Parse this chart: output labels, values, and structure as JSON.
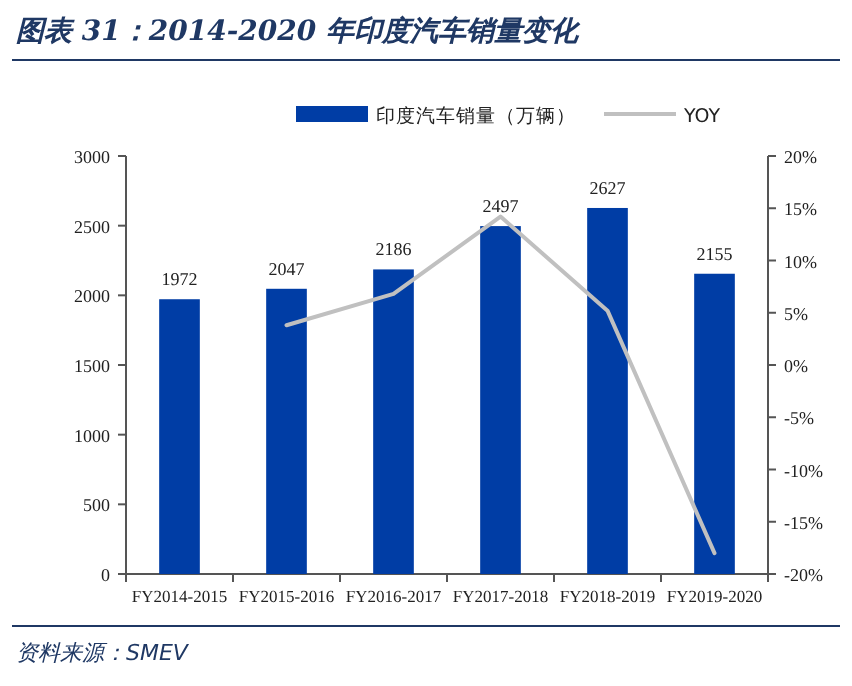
{
  "chart_data": {
    "type": "bar",
    "title": "图表 31：2014-2020 年印度汽车销量变化",
    "categories": [
      "FY2014-2015",
      "FY2015-2016",
      "FY2016-2017",
      "FY2017-2018",
      "FY2018-2019",
      "FY2019-2020"
    ],
    "series": [
      {
        "name": "印度汽车销量（万辆）",
        "color": "#003da5",
        "values": [
          1972,
          2047,
          2186,
          2497,
          2627,
          2155
        ],
        "value_labels": [
          "1972",
          "2047",
          "2186",
          "2497",
          "2627",
          "2155"
        ]
      },
      {
        "name": "YOY",
        "type": "line",
        "axis": "y2",
        "color": "#c0c0c0",
        "values": [
          null,
          3.8,
          6.8,
          14.2,
          5.2,
          -18.0
        ]
      }
    ],
    "ylim": [
      0,
      3000
    ],
    "yticks": [
      0,
      500,
      1000,
      1500,
      2000,
      2500,
      3000
    ],
    "y2lim": [
      -20,
      20
    ],
    "y2ticks": [
      {
        "value": -20,
        "label": "-20%"
      },
      {
        "value": -15,
        "label": "-15%"
      },
      {
        "value": -10,
        "label": "-10%"
      },
      {
        "value": -5,
        "label": "-5%"
      },
      {
        "value": 0,
        "label": "0%"
      },
      {
        "value": 5,
        "label": "5%"
      },
      {
        "value": 10,
        "label": "10%"
      },
      {
        "value": 15,
        "label": "15%"
      },
      {
        "value": 20,
        "label": "20%"
      }
    ],
    "legend": "top",
    "grid": false,
    "marker": "none",
    "annotations": [
      "资料来源：SMEV"
    ]
  }
}
